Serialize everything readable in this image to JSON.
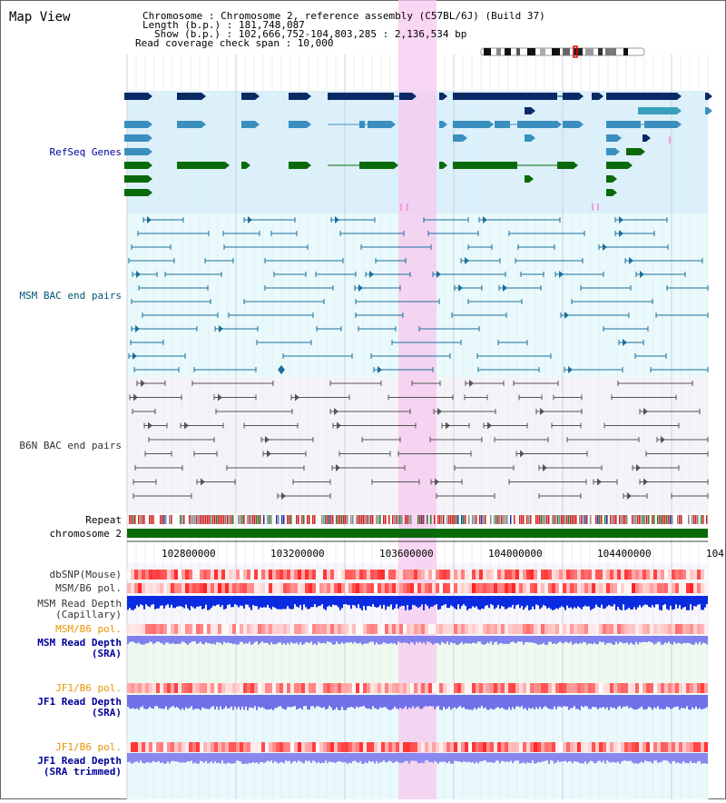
{
  "title": "Map View",
  "header": {
    "lines": [
      "Chromosome        : Chromosome 2, reference assembly (C57BL/6J) (Build 37)",
      "Length (b.p.)  : 181,748,087",
      "Show (b.p.) : 102,666,752-104,803,285 : 2,136,534 bp",
      "Read coverage check span : 10,000"
    ]
  },
  "tracks": {
    "refseq": "RefSeq Genes",
    "msm_bac": "MSM BAC end pairs",
    "b6n_bac": "B6N BAC end pairs",
    "repeat": "Repeat",
    "chromosome": "chromosome 2",
    "dbsnp": "dbSNP(Mouse)",
    "msm_b6_pol_1": "MSM/B6 pol.",
    "msm_depth_cap_1": "MSM Read Depth",
    "msm_depth_cap_2": "(Capillary)",
    "msm_b6_pol_2": "MSM/B6 pol.",
    "msm_depth_sra_1": "MSM Read Depth",
    "msm_depth_sra_2": "(SRA)",
    "jf1_b6_pol_1": "JF1/B6 pol.",
    "jf1_depth_sra_1": "JF1 Read Depth",
    "jf1_depth_sra_2": "(SRA)",
    "jf1_b6_pol_2": "JF1/B6 pol.",
    "jf1_depth_trim_1": "JF1 Read Depth",
    "jf1_depth_trim_2": "(SRA trimmed)"
  },
  "axis": {
    "ticks": [
      "102800000",
      "103200000",
      "103600000",
      "104000000",
      "104400000",
      "104"
    ]
  },
  "colors": {
    "label_gray": "#333333",
    "label_blue": "#000099",
    "label_teal": "#005577",
    "label_orange": "#e69500",
    "refseq_bg": "#daf0fa",
    "msm_bg": "#e8fafc",
    "b6n_bg": "#f4f4f8",
    "highlight": "#f7c8ef",
    "dark_navy": "#0a2a66",
    "mid_blue": "#3a8fbf",
    "green": "#0a6a0a",
    "chrom_green": "#0a6a0a"
  }
}
